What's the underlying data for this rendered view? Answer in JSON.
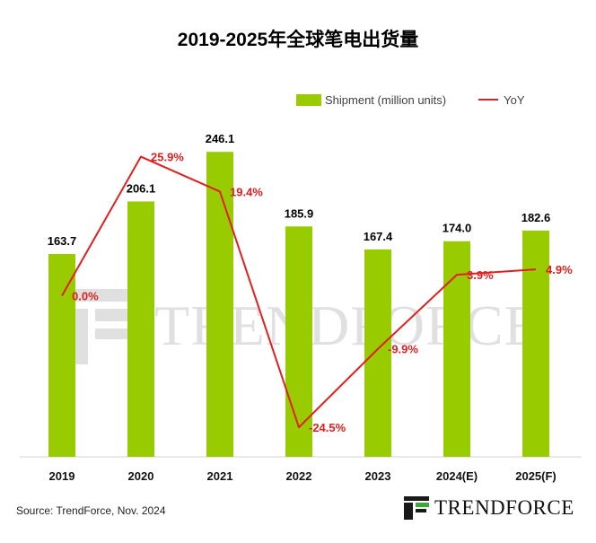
{
  "chart_data": {
    "type": "bar",
    "title": "2019-2025年全球笔电出货量",
    "categories": [
      "2019",
      "2020",
      "2021",
      "2022",
      "2023",
      "2024(E)",
      "2025(F)"
    ],
    "series": [
      {
        "name": "Shipment (million units)",
        "type": "bar",
        "values": [
          163.7,
          206.1,
          246.1,
          185.9,
          167.4,
          174.0,
          182.6
        ],
        "labels": [
          "163.7",
          "206.1",
          "246.1",
          "185.9",
          "167.4",
          "174.0",
          "182.6"
        ]
      },
      {
        "name": "YoY",
        "type": "line",
        "axis": "secondary",
        "values": [
          0.0,
          25.9,
          19.4,
          -24.5,
          -9.9,
          3.9,
          4.9
        ],
        "labels": [
          "0.0%",
          "25.9%",
          "19.4%",
          "-24.5%",
          "-9.9%",
          "3.9%",
          "4.9%"
        ]
      }
    ],
    "ylim": [
      0,
      260
    ],
    "y2lim": [
      -30,
      30
    ],
    "grid": false,
    "legend_position": "top-right",
    "colors": {
      "bar": "#99cc00",
      "line": "#e02020",
      "bar_label": "#000000",
      "line_label": "#e02020"
    }
  },
  "source": "Source: TrendForce, Nov. 2024",
  "brand": {
    "name": "TRENDFORCE"
  },
  "watermark": {
    "text": "TRENDFORCE"
  }
}
